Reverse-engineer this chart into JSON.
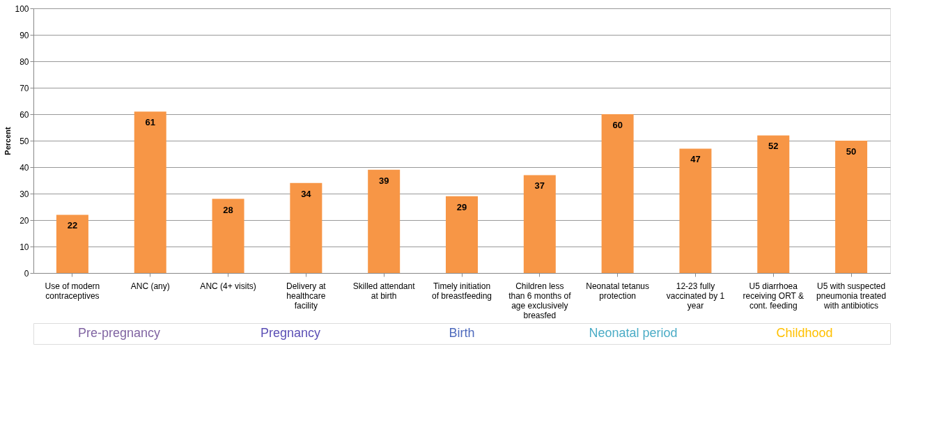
{
  "chart_data": {
    "type": "bar",
    "ylabel": "Percent",
    "categories": [
      "Use of modern contraceptives",
      "ANC (any)",
      "ANC (4+ visits)",
      "Delivery at healthcare facility",
      "Skilled attendant at birth",
      "Timely initiation of breastfeeding",
      "Children less than 6 months of age exclusively breasfed",
      "Neonatal tetanus protection",
      "12-23 fully vaccinated by 1 year",
      "U5 diarrhoea receiving ORT & cont. feeding",
      "U5 with suspected pneumonia treated with antibiotics"
    ],
    "values": [
      22,
      61,
      28,
      34,
      39,
      29,
      37,
      60,
      47,
      52,
      50
    ],
    "color": "#f79646",
    "data_labels": true,
    "grid": "y",
    "ylim": [
      0,
      100
    ],
    "yticks": [
      0,
      10,
      20,
      30,
      40,
      50,
      60,
      70,
      80,
      90,
      100
    ],
    "annotations": [
      "Pre-pregnancy",
      "Pregnancy",
      "Birth",
      "Neonatal period",
      "Childhood"
    ]
  }
}
